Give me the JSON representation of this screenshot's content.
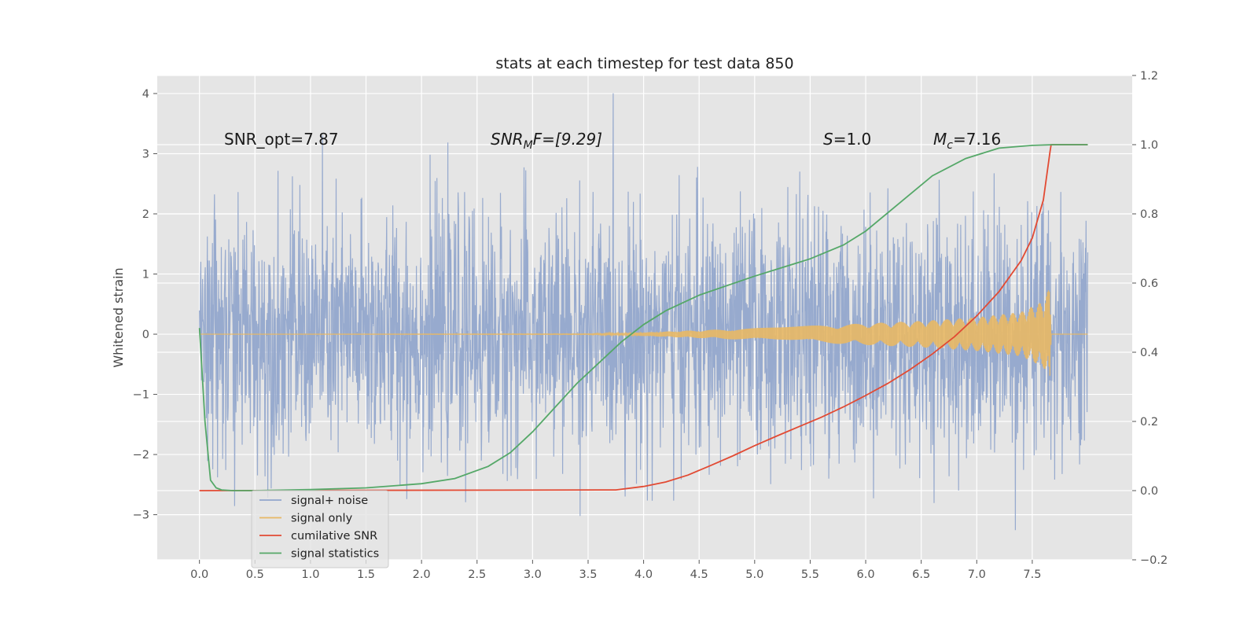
{
  "chart_data": {
    "type": "line",
    "title": "stats at each timestep for test data 850",
    "xlabel": "",
    "ylabel": "Whitened strain",
    "xlim": [
      -0.38,
      8.4
    ],
    "ylim": [
      -3.75,
      4.3
    ],
    "y2lim": [
      -0.2,
      1.2
    ],
    "grid": true,
    "legend_position": "lower-left",
    "x_ticks": [
      "0.0",
      "0.5",
      "1.0",
      "1.5",
      "2.0",
      "2.5",
      "3.0",
      "3.5",
      "4.0",
      "4.5",
      "5.0",
      "5.5",
      "6.0",
      "6.5",
      "7.0",
      "7.5"
    ],
    "y_ticks": [
      "−3",
      "−2",
      "−1",
      "0",
      "1",
      "2",
      "3",
      "4"
    ],
    "y2_ticks": [
      "−0.2",
      "0.0",
      "0.2",
      "0.4",
      "0.6",
      "0.8",
      "1.0",
      "1.2"
    ],
    "annotations": {
      "snr_opt": "SNR_opt=7.87",
      "snr_mf_sym": "SNR",
      "snr_mf_sub": "M",
      "snr_mf_rest": "F=[9.29]",
      "s_sym": "S",
      "s_rest": "=1.0",
      "mc_sym": "M",
      "mc_sub": "c",
      "mc_rest": "=7.16"
    },
    "series": [
      {
        "name": "signal+ noise",
        "color": "#92a6cc",
        "axis": "left",
        "description_values": {
          "x_range": [
            0,
            8.0
          ],
          "approx_std": 1.0
        }
      },
      {
        "name": "signal only",
        "color": "#e8b865",
        "axis": "left",
        "envelope": {
          "x": [
            0,
            3.5,
            4.0,
            5.0,
            6.0,
            6.5,
            7.0,
            7.4,
            7.6,
            7.66,
            7.67,
            8.0
          ],
          "amp": [
            0,
            0.005,
            0.03,
            0.1,
            0.18,
            0.22,
            0.28,
            0.37,
            0.55,
            0.8,
            0,
            0
          ]
        }
      },
      {
        "name": "cumilative SNR",
        "color": "#e24a33",
        "axis": "right",
        "x": [
          0,
          3.75,
          4.0,
          4.2,
          4.4,
          4.6,
          4.8,
          5.0,
          5.2,
          5.4,
          5.6,
          5.8,
          6.0,
          6.2,
          6.4,
          6.6,
          6.8,
          7.0,
          7.2,
          7.4,
          7.5,
          7.6,
          7.66,
          7.67,
          8.0
        ],
        "y": [
          0.0,
          0.002,
          0.012,
          0.025,
          0.045,
          0.072,
          0.1,
          0.13,
          0.158,
          0.185,
          0.212,
          0.242,
          0.275,
          0.31,
          0.35,
          0.395,
          0.445,
          0.505,
          0.575,
          0.665,
          0.73,
          0.84,
          0.98,
          1.0,
          1.0
        ]
      },
      {
        "name": "signal statistics",
        "color": "#55a868",
        "axis": "right",
        "x": [
          0,
          0.05,
          0.1,
          0.15,
          0.2,
          0.3,
          0.5,
          1.0,
          1.5,
          2.0,
          2.3,
          2.6,
          2.8,
          3.0,
          3.2,
          3.4,
          3.6,
          3.8,
          4.0,
          4.2,
          4.5,
          5.0,
          5.5,
          5.8,
          6.0,
          6.3,
          6.6,
          6.9,
          7.2,
          7.5,
          7.7,
          8.0
        ],
        "y": [
          0.47,
          0.2,
          0.03,
          0.008,
          0.002,
          0.0,
          0.0,
          0.003,
          0.008,
          0.02,
          0.035,
          0.07,
          0.11,
          0.17,
          0.24,
          0.31,
          0.37,
          0.43,
          0.48,
          0.52,
          0.565,
          0.62,
          0.67,
          0.71,
          0.75,
          0.83,
          0.91,
          0.96,
          0.99,
          0.998,
          1.0,
          1.0
        ]
      }
    ]
  }
}
